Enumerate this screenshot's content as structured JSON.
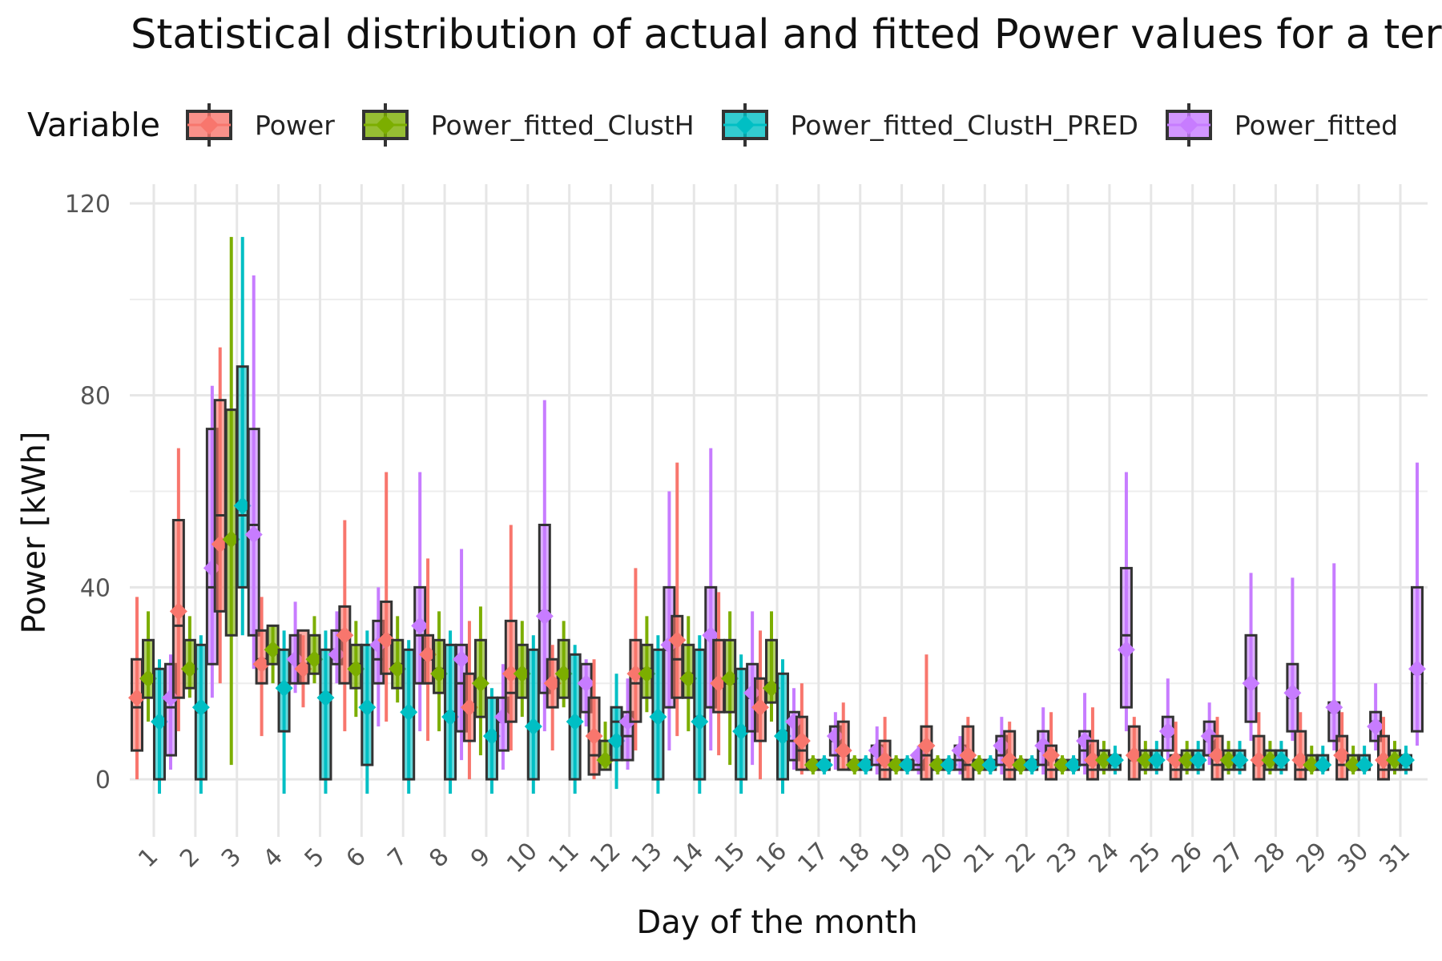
{
  "chart_data": {
    "type": "box",
    "title": "Statistical distribution of actual and fitted Power values for a ter",
    "xlabel": "Day of the month",
    "ylabel": "Power [kWh]",
    "ylim": [
      -12,
      124
    ],
    "yticks": [
      0,
      40,
      80,
      120
    ],
    "grid": true,
    "legend": {
      "title": "Variable",
      "position": "top"
    },
    "categories": [
      "1",
      "2",
      "3",
      "4",
      "5",
      "6",
      "7",
      "8",
      "9",
      "10",
      "11",
      "12",
      "13",
      "14",
      "15",
      "16",
      "17",
      "18",
      "19",
      "20",
      "21",
      "22",
      "23",
      "24",
      "25",
      "26",
      "27",
      "28",
      "29",
      "30",
      "31"
    ],
    "series": [
      {
        "name": "Power",
        "color": "#F8766D",
        "stats": [
          [
            0,
            6,
            15,
            25,
            38,
            17
          ],
          [
            10,
            17,
            32,
            54,
            69,
            35
          ],
          [
            20,
            35,
            55,
            79,
            90,
            49
          ],
          [
            9,
            20,
            25,
            31,
            38,
            24
          ],
          [
            15,
            20,
            24,
            31,
            30,
            23
          ],
          [
            10,
            20,
            30,
            36,
            54,
            30
          ],
          [
            12,
            22,
            30,
            37,
            64,
            29
          ],
          [
            8,
            20,
            25,
            30,
            46,
            26
          ],
          [
            0,
            8,
            15,
            22,
            33,
            15
          ],
          [
            6,
            12,
            18,
            33,
            53,
            22
          ],
          [
            6,
            15,
            20,
            25,
            28,
            20
          ],
          [
            0,
            1,
            5,
            17,
            25,
            9
          ],
          [
            6,
            12,
            20,
            29,
            44,
            22
          ],
          [
            9,
            17,
            25,
            34,
            66,
            29
          ],
          [
            5,
            14,
            20,
            29,
            39,
            20
          ],
          [
            0,
            8,
            15,
            21,
            31,
            15
          ],
          [
            1,
            2,
            6,
            13,
            20,
            8
          ],
          [
            2,
            2,
            5,
            12,
            16,
            6
          ],
          [
            0,
            0,
            2,
            8,
            13,
            4
          ],
          [
            0,
            0,
            5,
            11,
            26,
            7
          ],
          [
            0,
            0,
            3,
            11,
            13,
            5
          ],
          [
            0,
            0,
            2,
            10,
            12,
            4
          ],
          [
            0,
            0,
            2,
            7,
            14,
            5
          ],
          [
            0,
            0,
            2,
            8,
            15,
            4
          ],
          [
            0,
            0,
            4,
            11,
            13,
            5
          ],
          [
            0,
            0,
            2,
            5,
            12,
            4
          ],
          [
            0,
            0,
            3,
            9,
            13,
            5
          ],
          [
            0,
            0,
            3,
            9,
            14,
            4
          ],
          [
            0,
            0,
            2,
            10,
            14,
            4
          ],
          [
            0,
            0,
            3,
            9,
            14,
            5
          ],
          [
            0,
            0,
            2,
            9,
            13,
            4
          ]
        ]
      },
      {
        "name": "Power_fitted_ClustH",
        "color": "#7CAE00",
        "stats": [
          [
            12,
            17,
            21,
            29,
            35,
            21
          ],
          [
            17,
            19,
            23,
            29,
            34,
            23
          ],
          [
            3,
            30,
            50,
            77,
            113,
            50
          ],
          [
            20,
            24,
            27,
            32,
            32,
            27
          ],
          [
            20,
            22,
            25,
            30,
            34,
            25
          ],
          [
            13,
            19,
            24,
            28,
            33,
            23
          ],
          [
            16,
            19,
            24,
            29,
            34,
            23
          ],
          [
            10,
            18,
            23,
            29,
            35,
            22
          ],
          [
            5,
            13,
            20,
            29,
            36,
            20
          ],
          [
            13,
            17,
            22,
            28,
            33,
            22
          ],
          [
            15,
            17,
            22,
            29,
            33,
            22
          ],
          [
            2,
            2,
            4,
            8,
            12,
            4
          ],
          [
            14,
            17,
            23,
            28,
            34,
            22
          ],
          [
            10,
            17,
            22,
            28,
            34,
            21
          ],
          [
            3,
            14,
            20,
            29,
            35,
            21
          ],
          [
            12,
            16,
            20,
            29,
            35,
            19
          ],
          [
            1,
            2,
            3,
            4,
            5,
            3
          ],
          [
            1,
            2,
            3,
            4,
            5,
            3
          ],
          [
            1,
            2,
            3,
            4,
            5,
            3
          ],
          [
            1,
            2,
            3,
            4,
            5,
            3
          ],
          [
            1,
            2,
            3,
            4,
            5,
            3
          ],
          [
            1,
            2,
            3,
            4,
            5,
            3
          ],
          [
            1,
            2,
            3,
            4,
            5,
            3
          ],
          [
            1,
            2,
            4,
            6,
            8,
            4
          ],
          [
            1,
            2,
            4,
            6,
            8,
            4
          ],
          [
            1,
            2,
            4,
            6,
            8,
            4
          ],
          [
            1,
            2,
            4,
            6,
            8,
            4
          ],
          [
            1,
            2,
            4,
            6,
            8,
            4
          ],
          [
            1,
            2,
            3,
            5,
            7,
            3
          ],
          [
            1,
            2,
            3,
            5,
            7,
            3
          ],
          [
            1,
            2,
            4,
            6,
            8,
            4
          ]
        ]
      },
      {
        "name": "Power_fitted_ClustH_PRED",
        "color": "#00BFC4",
        "stats": [
          [
            -3,
            0,
            12,
            23,
            25,
            12
          ],
          [
            -3,
            0,
            14,
            28,
            30,
            15
          ],
          [
            30,
            40,
            55,
            86,
            113,
            57
          ],
          [
            -3,
            10,
            20,
            27,
            31,
            19
          ],
          [
            -3,
            0,
            18,
            27,
            31,
            17
          ],
          [
            -3,
            3,
            15,
            28,
            31,
            15
          ],
          [
            -3,
            0,
            14,
            27,
            29,
            14
          ],
          [
            -3,
            0,
            14,
            28,
            31,
            13
          ],
          [
            -3,
            0,
            9,
            17,
            19,
            9
          ],
          [
            -3,
            0,
            11,
            27,
            30,
            11
          ],
          [
            -3,
            0,
            12,
            26,
            28,
            12
          ],
          [
            -2,
            4,
            12,
            15,
            22,
            8
          ],
          [
            -3,
            0,
            13,
            27,
            30,
            13
          ],
          [
            -3,
            0,
            13,
            27,
            30,
            12
          ],
          [
            -3,
            0,
            10,
            23,
            26,
            10
          ],
          [
            -3,
            0,
            10,
            22,
            25,
            9
          ],
          [
            1,
            2,
            3,
            4,
            5,
            3
          ],
          [
            1,
            2,
            3,
            4,
            5,
            3
          ],
          [
            1,
            2,
            3,
            4,
            5,
            3
          ],
          [
            1,
            2,
            3,
            4,
            5,
            3
          ],
          [
            1,
            2,
            3,
            4,
            5,
            3
          ],
          [
            1,
            2,
            3,
            4,
            5,
            3
          ],
          [
            1,
            2,
            3,
            4,
            5,
            3
          ],
          [
            1,
            2,
            3,
            5,
            7,
            4
          ],
          [
            1,
            2,
            4,
            6,
            8,
            4
          ],
          [
            1,
            2,
            4,
            6,
            8,
            4
          ],
          [
            1,
            2,
            3,
            6,
            8,
            4
          ],
          [
            1,
            2,
            3,
            6,
            8,
            4
          ],
          [
            1,
            2,
            3,
            5,
            7,
            3
          ],
          [
            1,
            2,
            3,
            5,
            7,
            3
          ],
          [
            1,
            2,
            3,
            5,
            7,
            4
          ]
        ]
      },
      {
        "name": "Power_fitted",
        "color": "#C77CFF",
        "stats": [
          [
            2,
            5,
            15,
            24,
            26,
            17
          ],
          [
            17,
            24,
            40,
            73,
            82,
            44
          ],
          [
            23,
            30,
            53,
            73,
            105,
            51
          ],
          [
            18,
            20,
            25,
            30,
            37,
            25
          ],
          [
            20,
            24,
            27,
            31,
            35,
            26
          ],
          [
            11,
            20,
            25,
            33,
            40,
            28
          ],
          [
            10,
            20,
            30,
            40,
            64,
            32
          ],
          [
            4,
            10,
            20,
            28,
            48,
            25
          ],
          [
            2,
            6,
            12,
            17,
            24,
            13
          ],
          [
            10,
            18,
            35,
            53,
            79,
            34
          ],
          [
            11,
            14,
            20,
            24,
            25,
            20
          ],
          [
            2,
            4,
            9,
            14,
            21,
            12
          ],
          [
            6,
            15,
            27,
            40,
            60,
            28
          ],
          [
            6,
            15,
            30,
            40,
            69,
            30
          ],
          [
            3,
            10,
            17,
            24,
            35,
            18
          ],
          [
            2,
            4,
            8,
            14,
            19,
            12
          ],
          [
            2,
            5,
            8,
            11,
            14,
            9
          ],
          [
            1,
            3,
            5,
            7,
            11,
            6
          ],
          [
            1,
            2,
            3,
            5,
            7,
            5
          ],
          [
            1,
            2,
            4,
            7,
            9,
            6
          ],
          [
            1,
            3,
            5,
            9,
            13,
            7
          ],
          [
            1,
            3,
            6,
            10,
            15,
            7
          ],
          [
            1,
            3,
            6,
            10,
            18,
            8
          ],
          [
            10,
            15,
            30,
            44,
            64,
            27
          ],
          [
            4,
            6,
            9,
            13,
            21,
            10
          ],
          [
            3,
            5,
            8,
            12,
            16,
            9
          ],
          [
            8,
            12,
            20,
            30,
            43,
            20
          ],
          [
            8,
            10,
            17,
            24,
            42,
            18
          ],
          [
            6,
            8,
            14,
            16,
            45,
            15
          ],
          [
            6,
            8,
            12,
            14,
            20,
            11
          ],
          [
            7,
            10,
            22,
            40,
            66,
            23
          ]
        ]
      }
    ]
  }
}
